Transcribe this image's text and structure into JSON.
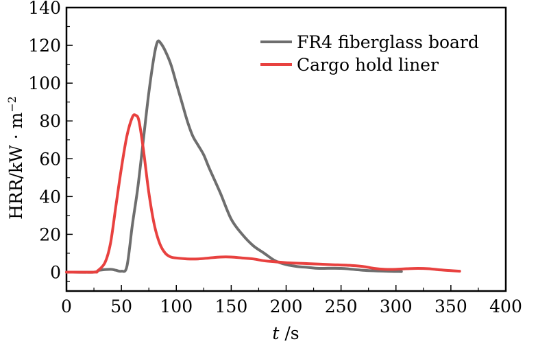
{
  "chart_data": {
    "type": "line",
    "title": "",
    "xlabel_italic": "t",
    "xlabel_unit": " /s",
    "ylabel": "HRR/kW · m",
    "ylabel_sup": "−2",
    "xlim": [
      0,
      400
    ],
    "ylim": [
      -10,
      140
    ],
    "xticks": [
      0,
      50,
      100,
      150,
      200,
      250,
      300,
      350,
      400
    ],
    "yticks": [
      0,
      20,
      40,
      60,
      80,
      100,
      120,
      140
    ],
    "grid": false,
    "legend_position": "top-right",
    "series": [
      {
        "name": "FR4 fiberglass board",
        "color": "#6e6e6e",
        "points": [
          [
            0,
            0
          ],
          [
            25,
            0
          ],
          [
            30,
            1
          ],
          [
            40,
            1.5
          ],
          [
            45,
            1
          ],
          [
            50,
            0.5
          ],
          [
            55,
            3
          ],
          [
            60,
            25
          ],
          [
            65,
            45
          ],
          [
            70,
            70
          ],
          [
            75,
            95
          ],
          [
            80,
            115
          ],
          [
            83,
            122
          ],
          [
            86,
            121
          ],
          [
            90,
            117
          ],
          [
            95,
            110
          ],
          [
            100,
            100
          ],
          [
            105,
            90
          ],
          [
            110,
            80
          ],
          [
            115,
            72
          ],
          [
            120,
            67
          ],
          [
            125,
            62
          ],
          [
            130,
            55
          ],
          [
            140,
            42
          ],
          [
            150,
            28
          ],
          [
            160,
            20
          ],
          [
            170,
            14
          ],
          [
            180,
            10
          ],
          [
            190,
            6
          ],
          [
            200,
            4
          ],
          [
            210,
            3
          ],
          [
            220,
            2.5
          ],
          [
            230,
            2
          ],
          [
            250,
            2
          ],
          [
            270,
            1
          ],
          [
            290,
            0.5
          ],
          [
            305,
            0.3
          ]
        ]
      },
      {
        "name": "Cargo hold liner",
        "color": "#e8413f",
        "points": [
          [
            0,
            0
          ],
          [
            25,
            0
          ],
          [
            28,
            0.5
          ],
          [
            35,
            5
          ],
          [
            40,
            15
          ],
          [
            45,
            35
          ],
          [
            50,
            55
          ],
          [
            55,
            72
          ],
          [
            60,
            82
          ],
          [
            63,
            83
          ],
          [
            66,
            80
          ],
          [
            70,
            65
          ],
          [
            75,
            42
          ],
          [
            80,
            25
          ],
          [
            85,
            15
          ],
          [
            90,
            10
          ],
          [
            95,
            8
          ],
          [
            100,
            7.5
          ],
          [
            110,
            7
          ],
          [
            120,
            7
          ],
          [
            130,
            7.5
          ],
          [
            140,
            8
          ],
          [
            150,
            8
          ],
          [
            160,
            7.5
          ],
          [
            170,
            7
          ],
          [
            180,
            6
          ],
          [
            190,
            5.5
          ],
          [
            200,
            5
          ],
          [
            220,
            4.5
          ],
          [
            240,
            4
          ],
          [
            260,
            3.5
          ],
          [
            270,
            3
          ],
          [
            280,
            2
          ],
          [
            290,
            1.5
          ],
          [
            300,
            1.5
          ],
          [
            310,
            1.8
          ],
          [
            320,
            2
          ],
          [
            330,
            1.8
          ],
          [
            340,
            1.2
          ],
          [
            350,
            0.8
          ],
          [
            358,
            0.5
          ]
        ]
      }
    ]
  }
}
